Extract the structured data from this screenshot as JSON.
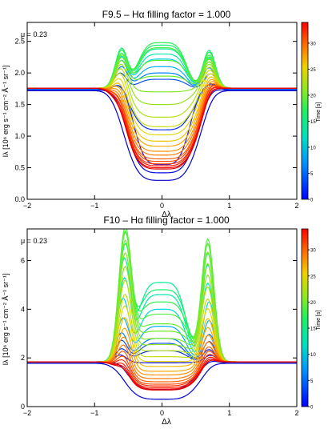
{
  "chart_data": [
    {
      "type": "line",
      "title": "F9.5 – Hα filling factor = 1.000",
      "annotation": "μ = 0.23",
      "xlabel": "Δλ",
      "ylabel": "Iλ [10⁶ erg s⁻¹ cm⁻² Å⁻¹ sr⁻¹]",
      "xlim": [
        -2,
        2
      ],
      "ylim": [
        0,
        2.8
      ],
      "xticks": [
        -2,
        -1,
        0,
        1,
        2
      ],
      "xtick_labels": [
        "−2",
        "−1",
        "0",
        "1",
        "2"
      ],
      "yticks": [
        0,
        0.5,
        1,
        1.5,
        2,
        2.5
      ],
      "ytick_labels": [
        "0.0",
        "0.5",
        "1.0",
        "1.5",
        "2.0",
        "2.5"
      ],
      "colorbar": {
        "label": "Time [s]",
        "range": [
          0,
          34
        ],
        "ticks": [
          0,
          5,
          10,
          15,
          20,
          25,
          30
        ],
        "colormap": "rainbow (blue → red)"
      },
      "series": [
        {
          "time": 0,
          "color": "#0000cc",
          "continuum": 1.72,
          "core": 0.3,
          "core_width": 0.62,
          "peak_height": 0.02,
          "peak_left": -0.62,
          "peak_right": 0.72
        },
        {
          "time": 1,
          "color": "#0a0ad8",
          "continuum": 1.73,
          "core": 0.42,
          "core_width": 0.58,
          "peak_height": 0.04,
          "peak_left": -0.62,
          "peak_right": 0.72
        },
        {
          "time": 2,
          "color": "#1515e0",
          "continuum": 1.74,
          "core": 0.55,
          "core_width": 0.45,
          "peak_height": 0.08,
          "peak_left": -0.62,
          "peak_right": 0.72
        },
        {
          "time": 3,
          "color": "#0d2ee0",
          "continuum": 1.74,
          "core": 1.1,
          "core_width": 0.5,
          "peak_height": 0.1,
          "peak_left": -0.62,
          "peak_right": 0.72
        },
        {
          "time": 4,
          "color": "#0a52ee",
          "continuum": 1.75,
          "core": 1.9,
          "core_width": 0.4,
          "peak_height": 0.25,
          "peak_left": -0.62,
          "peak_right": 0.72
        },
        {
          "time": 6,
          "color": "#0080ff",
          "continuum": 1.75,
          "core": 2.0,
          "core_width": 0.4,
          "peak_height": 0.35,
          "peak_left": -0.6,
          "peak_right": 0.7
        },
        {
          "time": 8,
          "color": "#00b0ff",
          "continuum": 1.75,
          "core": 2.1,
          "core_width": 0.4,
          "peak_height": 0.45,
          "peak_left": -0.6,
          "peak_right": 0.7
        },
        {
          "time": 10,
          "color": "#00d8e0",
          "continuum": 1.76,
          "core": 2.22,
          "core_width": 0.4,
          "peak_height": 0.5,
          "peak_left": -0.6,
          "peak_right": 0.7
        },
        {
          "time": 12,
          "color": "#00e8b0",
          "continuum": 1.76,
          "core": 2.3,
          "core_width": 0.4,
          "peak_height": 0.55,
          "peak_left": -0.6,
          "peak_right": 0.7
        },
        {
          "time": 13,
          "color": "#00ee90",
          "continuum": 1.76,
          "core": 2.38,
          "core_width": 0.4,
          "peak_height": 0.6,
          "peak_left": -0.6,
          "peak_right": 0.7
        },
        {
          "time": 14,
          "color": "#10f070",
          "continuum": 1.76,
          "core": 2.44,
          "core_width": 0.4,
          "peak_height": 0.63,
          "peak_left": -0.6,
          "peak_right": 0.7
        },
        {
          "time": 15,
          "color": "#30f050",
          "continuum": 1.76,
          "core": 2.48,
          "core_width": 0.4,
          "peak_height": 0.6,
          "peak_left": -0.6,
          "peak_right": 0.7
        },
        {
          "time": 16,
          "color": "#50f040",
          "continuum": 1.76,
          "core": 2.4,
          "core_width": 0.4,
          "peak_height": 0.55,
          "peak_left": -0.6,
          "peak_right": 0.7
        },
        {
          "time": 17,
          "color": "#60ee30",
          "continuum": 1.76,
          "core": 2.2,
          "core_width": 0.42,
          "peak_height": 0.52,
          "peak_left": -0.6,
          "peak_right": 0.7
        },
        {
          "time": 18,
          "color": "#70ea28",
          "continuum": 1.76,
          "core": 1.95,
          "core_width": 0.44,
          "peak_height": 0.48,
          "peak_left": -0.6,
          "peak_right": 0.7
        },
        {
          "time": 19,
          "color": "#80e820",
          "continuum": 1.76,
          "core": 1.7,
          "core_width": 0.46,
          "peak_height": 0.44,
          "peak_left": -0.6,
          "peak_right": 0.7
        },
        {
          "time": 20,
          "color": "#98e020",
          "continuum": 1.76,
          "core": 1.5,
          "core_width": 0.48,
          "peak_height": 0.4,
          "peak_left": -0.6,
          "peak_right": 0.7
        },
        {
          "time": 21,
          "color": "#b0e018",
          "continuum": 1.76,
          "core": 1.3,
          "core_width": 0.5,
          "peak_height": 0.36,
          "peak_left": -0.6,
          "peak_right": 0.7
        },
        {
          "time": 22,
          "color": "#c8dc10",
          "continuum": 1.76,
          "core": 1.15,
          "core_width": 0.52,
          "peak_height": 0.32,
          "peak_left": -0.6,
          "peak_right": 0.7
        },
        {
          "time": 23,
          "color": "#e0d808",
          "continuum": 1.76,
          "core": 1.02,
          "core_width": 0.54,
          "peak_height": 0.28,
          "peak_left": -0.6,
          "peak_right": 0.7
        },
        {
          "time": 24,
          "color": "#f0c000",
          "continuum": 1.76,
          "core": 0.92,
          "core_width": 0.56,
          "peak_height": 0.25,
          "peak_left": -0.6,
          "peak_right": 0.7
        },
        {
          "time": 25,
          "color": "#f8a800",
          "continuum": 1.76,
          "core": 0.84,
          "core_width": 0.57,
          "peak_height": 0.22,
          "peak_left": -0.6,
          "peak_right": 0.7
        },
        {
          "time": 26,
          "color": "#ff9000",
          "continuum": 1.76,
          "core": 0.76,
          "core_width": 0.58,
          "peak_height": 0.2,
          "peak_left": -0.6,
          "peak_right": 0.7
        },
        {
          "time": 27,
          "color": "#ff7800",
          "continuum": 1.76,
          "core": 0.7,
          "core_width": 0.59,
          "peak_height": 0.18,
          "peak_left": -0.6,
          "peak_right": 0.7
        },
        {
          "time": 28,
          "color": "#ff6000",
          "continuum": 1.76,
          "core": 0.64,
          "core_width": 0.6,
          "peak_height": 0.17,
          "peak_left": -0.6,
          "peak_right": 0.7
        },
        {
          "time": 29,
          "color": "#ff4800",
          "continuum": 1.76,
          "core": 0.6,
          "core_width": 0.6,
          "peak_height": 0.16,
          "peak_left": -0.6,
          "peak_right": 0.7
        },
        {
          "time": 30,
          "color": "#ff3000",
          "continuum": 1.76,
          "core": 0.56,
          "core_width": 0.61,
          "peak_height": 0.15,
          "peak_left": -0.6,
          "peak_right": 0.7
        },
        {
          "time": 31,
          "color": "#ff1800",
          "continuum": 1.76,
          "core": 0.53,
          "core_width": 0.61,
          "peak_height": 0.14,
          "peak_left": -0.6,
          "peak_right": 0.7
        },
        {
          "time": 32,
          "color": "#f00000",
          "continuum": 1.76,
          "core": 0.5,
          "core_width": 0.62,
          "peak_height": 0.13,
          "peak_left": -0.6,
          "peak_right": 0.7
        },
        {
          "time": 33,
          "color": "#dd0000",
          "continuum": 1.76,
          "core": 0.48,
          "core_width": 0.62,
          "peak_height": 0.12,
          "peak_left": -0.6,
          "peak_right": 0.7
        }
      ]
    },
    {
      "type": "line",
      "title": "F10 – Hα filling factor = 1.000",
      "annotation": "μ = 0.23",
      "xlabel": "Δλ",
      "ylabel": "Iλ [10⁶ erg s⁻¹ cm⁻² Å⁻¹ sr⁻¹]",
      "xlim": [
        -2,
        2
      ],
      "ylim": [
        0,
        7.3
      ],
      "xticks": [
        -2,
        -1,
        0,
        1,
        2
      ],
      "xtick_labels": [
        "−2",
        "−1",
        "0",
        "1",
        "2"
      ],
      "yticks": [
        0,
        2,
        4,
        6
      ],
      "ytick_labels": [
        "0",
        "2",
        "4",
        "6"
      ],
      "colorbar": {
        "label": "Time [s]",
        "range": [
          0,
          34
        ],
        "ticks": [
          0,
          5,
          10,
          15,
          20,
          25,
          30
        ],
        "colormap": "rainbow (blue → red)"
      },
      "series": [
        {
          "time": 0,
          "color": "#0000cc",
          "continuum": 1.78,
          "core": 0.3,
          "core_width": 0.62,
          "peak_height": 0.05,
          "peak_left": -0.62,
          "peak_right": 0.72
        },
        {
          "time": 1,
          "color": "#0a0ad8",
          "continuum": 1.8,
          "core": 0.7,
          "core_width": 0.55,
          "peak_height": 0.1,
          "peak_left": -0.62,
          "peak_right": 0.72
        },
        {
          "time": 2,
          "color": "#1515e0",
          "continuum": 1.82,
          "core": 1.8,
          "core_width": 0.45,
          "peak_height": 0.3,
          "peak_left": -0.62,
          "peak_right": 0.72
        },
        {
          "time": 3,
          "color": "#0d2ee0",
          "continuum": 1.82,
          "core": 2.3,
          "core_width": 0.42,
          "peak_height": 0.55,
          "peak_left": -0.6,
          "peak_right": 0.7
        },
        {
          "time": 4,
          "color": "#0a52ee",
          "continuum": 1.82,
          "core": 2.6,
          "core_width": 0.4,
          "peak_height": 0.9,
          "peak_left": -0.6,
          "peak_right": 0.7
        },
        {
          "time": 5,
          "color": "#0080ff",
          "continuum": 1.83,
          "core": 2.8,
          "core_width": 0.4,
          "peak_height": 1.2,
          "peak_left": -0.6,
          "peak_right": 0.7
        },
        {
          "time": 7,
          "color": "#00b0ff",
          "continuum": 1.83,
          "core": 3.3,
          "core_width": 0.4,
          "peak_height": 1.8,
          "peak_left": -0.58,
          "peak_right": 0.7
        },
        {
          "time": 9,
          "color": "#00d8e0",
          "continuum": 1.84,
          "core": 4.0,
          "core_width": 0.4,
          "peak_height": 2.6,
          "peak_left": -0.58,
          "peak_right": 0.7
        },
        {
          "time": 11,
          "color": "#00e8b0",
          "continuum": 1.84,
          "core": 4.6,
          "core_width": 0.4,
          "peak_height": 3.4,
          "peak_left": -0.56,
          "peak_right": 0.68
        },
        {
          "time": 12,
          "color": "#00ee90",
          "continuum": 1.84,
          "core": 5.1,
          "core_width": 0.4,
          "peak_height": 4.2,
          "peak_left": -0.56,
          "peak_right": 0.68
        },
        {
          "time": 13,
          "color": "#10f070",
          "continuum": 1.84,
          "core": 4.8,
          "core_width": 0.42,
          "peak_height": 4.7,
          "peak_left": -0.55,
          "peak_right": 0.68
        },
        {
          "time": 14,
          "color": "#30f050",
          "continuum": 1.84,
          "core": 4.3,
          "core_width": 0.44,
          "peak_height": 5.1,
          "peak_left": -0.55,
          "peak_right": 0.68
        },
        {
          "time": 15,
          "color": "#50f040",
          "continuum": 1.84,
          "core": 3.8,
          "core_width": 0.46,
          "peak_height": 5.3,
          "peak_left": -0.55,
          "peak_right": 0.68
        },
        {
          "time": 16,
          "color": "#60ee30",
          "continuum": 1.84,
          "core": 3.4,
          "core_width": 0.48,
          "peak_height": 5.1,
          "peak_left": -0.55,
          "peak_right": 0.68
        },
        {
          "time": 17,
          "color": "#70ea28",
          "continuum": 1.84,
          "core": 3.1,
          "core_width": 0.5,
          "peak_height": 4.7,
          "peak_left": -0.55,
          "peak_right": 0.68
        },
        {
          "time": 18,
          "color": "#80e820",
          "continuum": 1.84,
          "core": 2.8,
          "core_width": 0.52,
          "peak_height": 4.2,
          "peak_left": -0.55,
          "peak_right": 0.68
        },
        {
          "time": 19,
          "color": "#98e020",
          "continuum": 1.84,
          "core": 2.55,
          "core_width": 0.53,
          "peak_height": 3.7,
          "peak_left": -0.55,
          "peak_right": 0.68
        },
        {
          "time": 20,
          "color": "#b0e018",
          "continuum": 1.84,
          "core": 2.3,
          "core_width": 0.54,
          "peak_height": 3.2,
          "peak_left": -0.55,
          "peak_right": 0.68
        },
        {
          "time": 21,
          "color": "#c8dc10",
          "continuum": 1.84,
          "core": 2.05,
          "core_width": 0.55,
          "peak_height": 2.7,
          "peak_left": -0.55,
          "peak_right": 0.68
        },
        {
          "time": 22,
          "color": "#e0d808",
          "continuum": 1.84,
          "core": 1.85,
          "core_width": 0.56,
          "peak_height": 2.3,
          "peak_left": -0.55,
          "peak_right": 0.68
        },
        {
          "time": 23,
          "color": "#f0c000",
          "continuum": 1.84,
          "core": 1.65,
          "core_width": 0.57,
          "peak_height": 1.9,
          "peak_left": -0.55,
          "peak_right": 0.68
        },
        {
          "time": 24,
          "color": "#f8a800",
          "continuum": 1.84,
          "core": 1.45,
          "core_width": 0.58,
          "peak_height": 1.55,
          "peak_left": -0.55,
          "peak_right": 0.68
        },
        {
          "time": 25,
          "color": "#ff9000",
          "continuum": 1.84,
          "core": 1.3,
          "core_width": 0.59,
          "peak_height": 1.25,
          "peak_left": -0.56,
          "peak_right": 0.68
        },
        {
          "time": 26,
          "color": "#ff7800",
          "continuum": 1.84,
          "core": 1.15,
          "core_width": 0.6,
          "peak_height": 1.0,
          "peak_left": -0.56,
          "peak_right": 0.68
        },
        {
          "time": 27,
          "color": "#ff6000",
          "continuum": 1.84,
          "core": 1.02,
          "core_width": 0.6,
          "peak_height": 0.8,
          "peak_left": -0.56,
          "peak_right": 0.68
        },
        {
          "time": 28,
          "color": "#ff4800",
          "continuum": 1.84,
          "core": 0.92,
          "core_width": 0.61,
          "peak_height": 0.65,
          "peak_left": -0.56,
          "peak_right": 0.68
        },
        {
          "time": 29,
          "color": "#ff3000",
          "continuum": 1.84,
          "core": 0.85,
          "core_width": 0.61,
          "peak_height": 0.52,
          "peak_left": -0.56,
          "peak_right": 0.68
        },
        {
          "time": 30,
          "color": "#ff1800",
          "continuum": 1.84,
          "core": 0.78,
          "core_width": 0.62,
          "peak_height": 0.42,
          "peak_left": -0.56,
          "peak_right": 0.68
        },
        {
          "time": 31,
          "color": "#f00000",
          "continuum": 1.84,
          "core": 0.72,
          "core_width": 0.62,
          "peak_height": 0.34,
          "peak_left": -0.56,
          "peak_right": 0.68
        },
        {
          "time": 32,
          "color": "#dd0000",
          "continuum": 1.84,
          "core": 0.68,
          "core_width": 0.62,
          "peak_height": 0.28,
          "peak_left": -0.56,
          "peak_right": 0.68
        }
      ]
    }
  ]
}
